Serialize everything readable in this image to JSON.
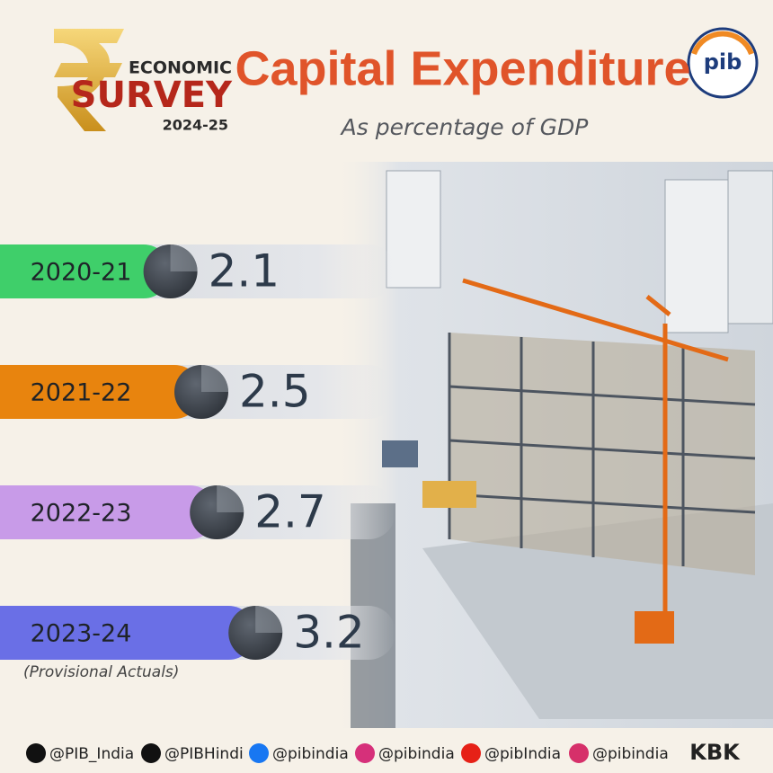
{
  "header": {
    "logo": {
      "line1": "ECONOMIC",
      "line2": "SURVEY",
      "line3": "2024-25"
    },
    "org_logo": "pib"
  },
  "chart_data": {
    "type": "bar",
    "orientation": "horizontal",
    "title": "Capital Expenditure",
    "subtitle": "As percentage of GDP",
    "categories": [
      "2020-21",
      "2021-22",
      "2022-23",
      "2023-24"
    ],
    "values": [
      2.1,
      2.5,
      2.7,
      3.2
    ],
    "colors": [
      "#3fcf6a",
      "#e8840e",
      "#c89be8",
      "#6a6fe6"
    ],
    "note": "(Provisional Actuals)"
  },
  "footer": {
    "handles": [
      "@PIB_India",
      "@PIBHindi",
      "@pibindia",
      "@pibindia",
      "@pibIndia",
      "@pibindia"
    ],
    "credit": "KBK"
  }
}
